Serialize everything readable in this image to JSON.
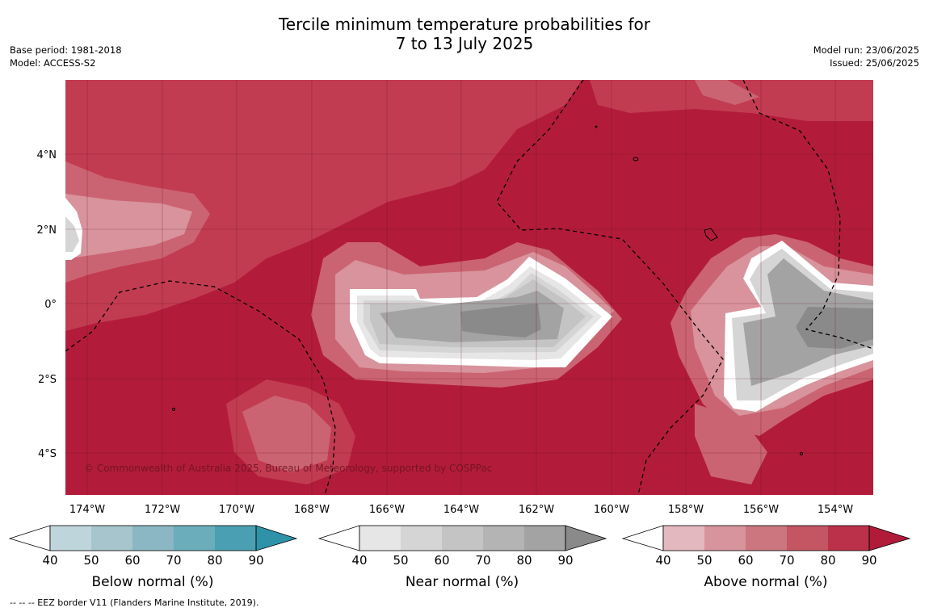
{
  "header": {
    "title_line1": "Tercile minimum temperature probabilities for",
    "title_line2": "7 to 13 July 2025",
    "base_period": "Base period: 1981-2018",
    "model": "Model: ACCESS-S2",
    "model_run": "Model run: 23/06/2025",
    "issued": "Issued: 25/06/2025"
  },
  "map": {
    "lat_ticks": [
      "4°N",
      "2°N",
      "0°",
      "2°S",
      "4°S"
    ],
    "lon_ticks": [
      "174°W",
      "172°W",
      "170°W",
      "168°W",
      "166°W",
      "164°W",
      "162°W",
      "160°W",
      "158°W",
      "156°W",
      "154°W"
    ],
    "copyright": "© Commonwealth of Australia 2025, Bureau of Meteorology, supported by COSPPac",
    "background_color": "#b21c3a"
  },
  "colorbars": [
    {
      "label": "Below normal (%)",
      "ticks": [
        "40",
        "50",
        "60",
        "70",
        "80",
        "90"
      ],
      "colors": [
        "#bfd5dc",
        "#a7c5cc",
        "#8ab7c3",
        "#6badbb",
        "#4aa0b2",
        "#2e93a8"
      ]
    },
    {
      "label": "Near normal (%)",
      "ticks": [
        "40",
        "50",
        "60",
        "70",
        "80",
        "90"
      ],
      "colors": [
        "#e6e6e6",
        "#d5d5d5",
        "#c4c4c4",
        "#b4b4b4",
        "#a3a3a3",
        "#8a8a8a"
      ]
    },
    {
      "label": "Above normal (%)",
      "ticks": [
        "40",
        "50",
        "60",
        "70",
        "80",
        "90"
      ],
      "colors": [
        "#e3b8bf",
        "#d7949d",
        "#cc767f",
        "#c45563",
        "#bb3149",
        "#b01b3a"
      ]
    }
  ],
  "footer": {
    "legend_line": "-- -- -- EEZ border V11 (Flanders Marine Institute, 2019)."
  }
}
